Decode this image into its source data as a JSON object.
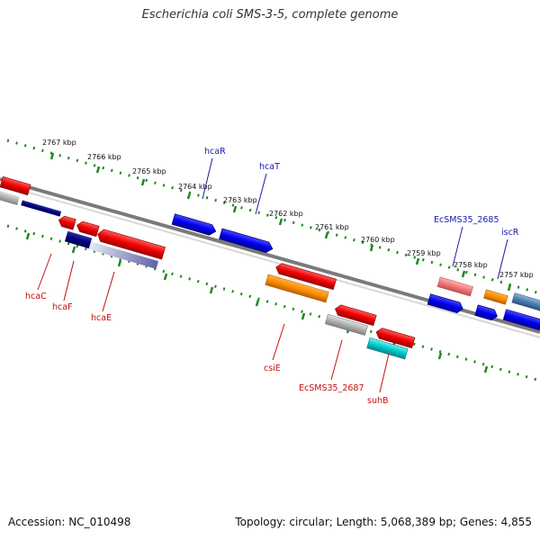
{
  "title": "Escherichia coli SMS-3-5, complete genome",
  "footer": {
    "accession": "Accession: NC_010498",
    "stats": "Topology: circular; Length: 5,068,389 bp; Genes: 4,855"
  },
  "ticks": [
    "2767 kbp",
    "2766 kbp",
    "2765 kbp",
    "2764 kbp",
    "2763 kbp",
    "2762 kbp",
    "2761 kbp",
    "2760 kbp",
    "2759 kbp",
    "2758 kbp",
    "2757 kbp"
  ],
  "gene_labels": {
    "hcaR": "hcaR",
    "hcaT": "hcaT",
    "EcSMS35_2685": "EcSMS35_2685",
    "iscR": "iscR",
    "hcaC": "hcaC",
    "hcaF": "hcaF",
    "hcaE": "hcaE",
    "csiE": "csiE",
    "EcSMS35_2687": "EcSMS35_2687",
    "suhB": "suhB"
  },
  "colors": {
    "backbone": "#7a7a7a",
    "tick_green": "#1f8a1f",
    "forward_gene": "#0000ee",
    "reverse_gene": "#ee0000",
    "orange_track": "#ff8c00",
    "gray_track": "#a8a8a8",
    "cyan_track": "#00c0c8",
    "navy_track": "#000080",
    "pink_track": "#f08080",
    "steel_track": "#4a7fb0"
  }
}
